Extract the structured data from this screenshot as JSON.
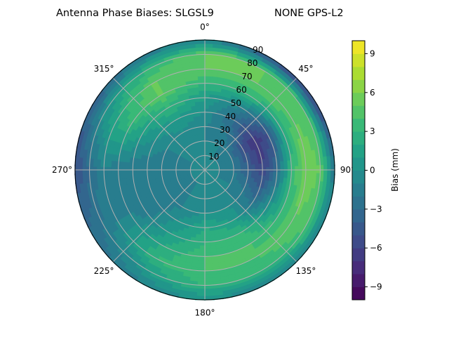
{
  "chart_data": {
    "type": "heatmap",
    "subtype": "polar-contour",
    "title_left": "Antenna Phase Biases: SLGSL9",
    "title_right": "NONE GPS-L2",
    "theta_direction": "clockwise",
    "theta_zero": "top",
    "theta_tick_labels": [
      "0°",
      "45°",
      "90°",
      "135°",
      "180°",
      "225°",
      "270°",
      "315°"
    ],
    "r_tick_labels": [
      "10",
      "20",
      "30",
      "40",
      "50",
      "60",
      "70",
      "80",
      "90"
    ],
    "rlim": [
      0,
      90
    ],
    "grid": true,
    "colormap": "viridis",
    "colorbar": {
      "label": "Bias (mm)",
      "range": [
        -10,
        10
      ],
      "levels": 20,
      "ticks": [
        "−9",
        "−6",
        "−3",
        "0",
        "3",
        "6",
        "9"
      ],
      "tick_values": [
        -9,
        -6,
        -3,
        0,
        3,
        6,
        9
      ]
    },
    "azimuths": [
      0,
      30,
      60,
      90,
      120,
      150,
      180,
      210,
      240,
      270,
      300,
      330
    ],
    "radii": [
      0,
      10,
      20,
      30,
      40,
      50,
      60,
      70,
      80,
      90
    ],
    "values": [
      [
        0,
        -1,
        -1,
        -1,
        0,
        1,
        3,
        5,
        5,
        -1
      ],
      [
        0,
        -1,
        -1,
        -2,
        -3,
        -1,
        3,
        5,
        5,
        -5
      ],
      [
        0,
        -1,
        -2,
        -5,
        -7,
        -5,
        2,
        5,
        4,
        -6
      ],
      [
        0,
        -1,
        -2,
        -4,
        -6,
        -3,
        3,
        6,
        5,
        -2
      ],
      [
        0,
        -1,
        -1,
        -2,
        -3,
        0,
        3,
        5,
        4,
        -1
      ],
      [
        0,
        -1,
        -1,
        0,
        1,
        3,
        4,
        4,
        3,
        -1
      ],
      [
        0,
        -1,
        -1,
        0,
        2,
        3,
        4,
        4,
        3,
        0
      ],
      [
        0,
        -1,
        -1,
        -1,
        0,
        1,
        2,
        3,
        1,
        -1
      ],
      [
        0,
        -1,
        -2,
        -2,
        -2,
        -2,
        -1,
        -1,
        -2,
        -3
      ],
      [
        0,
        -1,
        -2,
        -2,
        -2,
        -2,
        -2,
        -1,
        -3,
        -5
      ],
      [
        0,
        -1,
        -1,
        -1,
        0,
        1,
        3,
        2,
        0,
        -4
      ],
      [
        0,
        -1,
        -1,
        0,
        1,
        3,
        5,
        5,
        3,
        -2
      ]
    ]
  }
}
